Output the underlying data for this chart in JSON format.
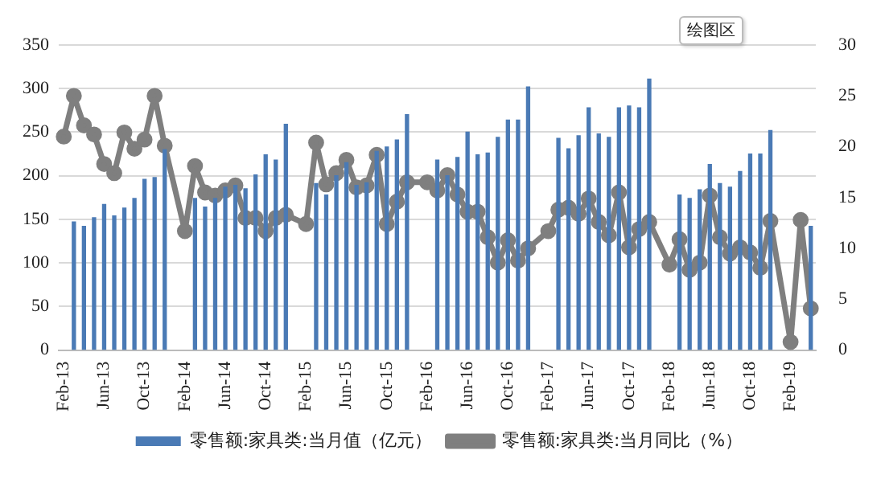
{
  "chart_data": {
    "type": "bar",
    "categories": [
      "Feb-13",
      null,
      null,
      null,
      "Jun-13",
      null,
      null,
      null,
      "Oct-13",
      null,
      null,
      null,
      "Feb-14",
      null,
      null,
      null,
      "Jun-14",
      null,
      null,
      null,
      "Oct-14",
      null,
      null,
      null,
      "Feb-15",
      null,
      null,
      null,
      "Jun-15",
      null,
      null,
      null,
      "Oct-15",
      null,
      null,
      null,
      "Feb-16",
      null,
      null,
      null,
      "Jun-16",
      null,
      null,
      null,
      "Oct-16",
      null,
      null,
      null,
      "Feb-17",
      null,
      null,
      null,
      "Jun-17",
      null,
      null,
      null,
      "Oct-17",
      null,
      null,
      null,
      "Feb-18",
      null,
      null,
      null,
      "Jun-18",
      null,
      null,
      null,
      "Oct-18",
      null,
      null,
      null,
      "Feb-19",
      null,
      null
    ],
    "series": [
      {
        "name": "零售额:家具类:当月值（亿元）",
        "color": "#4a7ab5",
        "values": [
          null,
          147,
          142,
          152,
          167,
          154,
          163,
          174,
          196,
          198,
          230,
          null,
          null,
          174,
          164,
          174,
          187,
          189,
          185,
          201,
          224,
          218,
          259,
          null,
          null,
          191,
          178,
          200,
          215,
          189,
          192,
          228,
          233,
          241,
          270,
          null,
          null,
          218,
          200,
          221,
          250,
          224,
          226,
          244,
          264,
          264,
          302,
          null,
          null,
          243,
          231,
          246,
          278,
          248,
          244,
          278,
          280,
          278,
          311,
          null,
          null,
          178,
          174,
          184,
          213,
          191,
          187,
          205,
          225,
          225,
          252,
          null,
          null,
          null,
          142
        ]
      },
      {
        "name": "零售额:家具类:当月同比（%）",
        "type": "line",
        "axis": "y2",
        "color": "#7f7f7f",
        "values": [
          21,
          25,
          22.1,
          21.2,
          18.3,
          17.4,
          21.4,
          19.8,
          20.7,
          25,
          20.1,
          null,
          11.7,
          18.1,
          15.5,
          15.2,
          15.7,
          16.2,
          13,
          13,
          11.7,
          13,
          13.3,
          null,
          12.4,
          20.4,
          16.3,
          17.4,
          18.7,
          16,
          16.2,
          19.2,
          12.4,
          14.6,
          16.5,
          null,
          16.5,
          15.7,
          17.2,
          15.3,
          13.6,
          13.6,
          11.1,
          8.6,
          10.8,
          8.8,
          10,
          null,
          11.7,
          13.8,
          14,
          13.4,
          14.9,
          12.6,
          11.3,
          15.5,
          10.1,
          11.9,
          12.6,
          null,
          8.4,
          10.9,
          7.9,
          8.6,
          15.2,
          11.1,
          9.5,
          10.1,
          9.6,
          8.1,
          12.7,
          null,
          0.8,
          12.8,
          4.1
        ]
      }
    ],
    "ylim": [
      0,
      350
    ],
    "yticks": [
      0,
      50,
      100,
      150,
      200,
      250,
      300,
      350
    ],
    "y2lim": [
      0,
      30
    ],
    "y2ticks": [
      0,
      5,
      10,
      15,
      20,
      25,
      30
    ],
    "grid": "y",
    "legend": "bottom",
    "marker": "circle",
    "annotations": [
      "绘图区"
    ]
  }
}
